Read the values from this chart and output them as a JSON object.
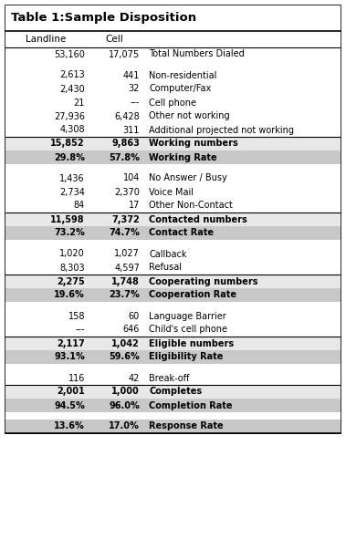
{
  "title": "Table 1:Sample Disposition",
  "col1_header": "Landline",
  "col2_header": "Cell",
  "rows": [
    {
      "c1": "53,160",
      "c2": "17,075",
      "label": "Total Numbers Dialed",
      "style": "normal",
      "sep_below": false
    },
    {
      "c1": "",
      "c2": "",
      "label": "",
      "style": "spacer",
      "sep_below": false
    },
    {
      "c1": "2,613",
      "c2": "441",
      "label": "Non-residential",
      "style": "normal",
      "sep_below": false
    },
    {
      "c1": "2,430",
      "c2": "32",
      "label": "Computer/Fax",
      "style": "normal",
      "sep_below": false
    },
    {
      "c1": "21",
      "c2": "---",
      "label": "Cell phone",
      "style": "normal",
      "sep_below": false
    },
    {
      "c1": "27,936",
      "c2": "6,428",
      "label": "Other not working",
      "style": "normal",
      "sep_below": false
    },
    {
      "c1": "4,308",
      "c2": "311",
      "label": "Additional projected not working",
      "style": "normal",
      "sep_below": true
    },
    {
      "c1": "15,852",
      "c2": "9,863",
      "label": "Working numbers",
      "style": "subhdr",
      "sep_below": false
    },
    {
      "c1": "29.8%",
      "c2": "57.8%",
      "label": "Working Rate",
      "style": "gray",
      "sep_below": false
    },
    {
      "c1": "",
      "c2": "",
      "label": "",
      "style": "spacer",
      "sep_below": false
    },
    {
      "c1": "1,436",
      "c2": "104",
      "label": "No Answer / Busy",
      "style": "normal",
      "sep_below": false
    },
    {
      "c1": "2,734",
      "c2": "2,370",
      "label": "Voice Mail",
      "style": "normal",
      "sep_below": false
    },
    {
      "c1": "84",
      "c2": "17",
      "label": "Other Non-Contact",
      "style": "normal",
      "sep_below": true
    },
    {
      "c1": "11,598",
      "c2": "7,372",
      "label": "Contacted numbers",
      "style": "subhdr",
      "sep_below": false
    },
    {
      "c1": "73.2%",
      "c2": "74.7%",
      "label": "Contact Rate",
      "style": "gray",
      "sep_below": false
    },
    {
      "c1": "",
      "c2": "",
      "label": "",
      "style": "spacer",
      "sep_below": false
    },
    {
      "c1": "1,020",
      "c2": "1,027",
      "label": "Callback",
      "style": "normal",
      "sep_below": false
    },
    {
      "c1": "8,303",
      "c2": "4,597",
      "label": "Refusal",
      "style": "normal",
      "sep_below": true
    },
    {
      "c1": "2,275",
      "c2": "1,748",
      "label": "Cooperating numbers",
      "style": "subhdr",
      "sep_below": false
    },
    {
      "c1": "19.6%",
      "c2": "23.7%",
      "label": "Cooperation Rate",
      "style": "gray",
      "sep_below": false
    },
    {
      "c1": "",
      "c2": "",
      "label": "",
      "style": "spacer",
      "sep_below": false
    },
    {
      "c1": "158",
      "c2": "60",
      "label": "Language Barrier",
      "style": "normal",
      "sep_below": false
    },
    {
      "c1": "---",
      "c2": "646",
      "label": "Child's cell phone",
      "style": "normal",
      "sep_below": true
    },
    {
      "c1": "2,117",
      "c2": "1,042",
      "label": "Eligible numbers",
      "style": "subhdr",
      "sep_below": false
    },
    {
      "c1": "93.1%",
      "c2": "59.6%",
      "label": "Eligibility Rate",
      "style": "gray",
      "sep_below": false
    },
    {
      "c1": "",
      "c2": "",
      "label": "",
      "style": "spacer",
      "sep_below": false
    },
    {
      "c1": "116",
      "c2": "42",
      "label": "Break-off",
      "style": "normal",
      "sep_below": true
    },
    {
      "c1": "2,001",
      "c2": "1,000",
      "label": "Completes",
      "style": "subhdr",
      "sep_below": false
    },
    {
      "c1": "94.5%",
      "c2": "96.0%",
      "label": "Completion Rate",
      "style": "gray",
      "sep_below": false
    },
    {
      "c1": "",
      "c2": "",
      "label": "",
      "style": "spacer",
      "sep_below": false
    },
    {
      "c1": "13.6%",
      "c2": "17.0%",
      "label": "Response Rate",
      "style": "gray",
      "sep_below": false
    }
  ],
  "bg_normal": "#ffffff",
  "bg_gray": "#c8c8c8",
  "bg_subhdr": "#e8e8e8",
  "bg_spacer": "#ffffff",
  "lw_outer": 1.2,
  "lw_inner": 0.8,
  "fs_title": 9.5,
  "fs_header": 7.5,
  "fs_data": 7.0
}
